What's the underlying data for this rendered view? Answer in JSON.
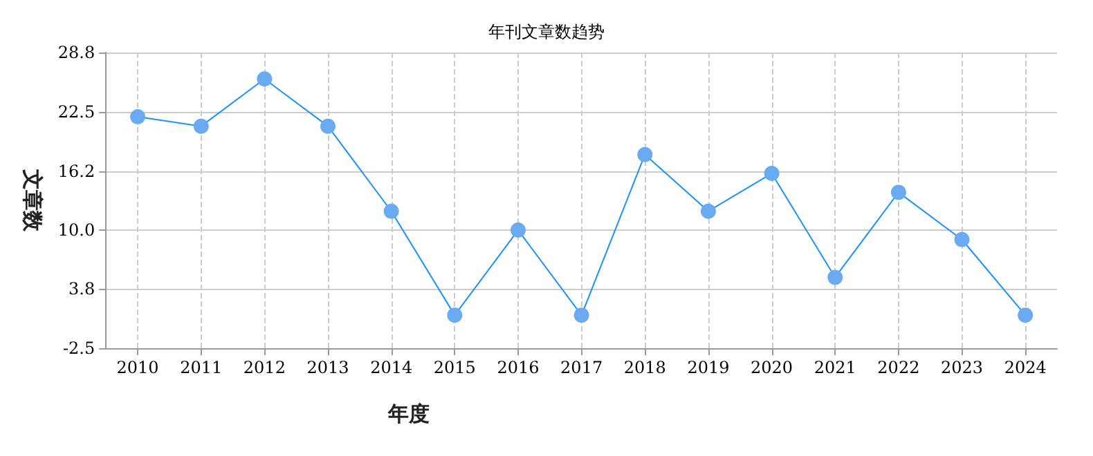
{
  "chart_data": {
    "type": "line",
    "title": "年刊文章数趋势",
    "xlabel": "年度",
    "ylabel": "文章数",
    "categories": [
      "2010",
      "2011",
      "2012",
      "2013",
      "2014",
      "2015",
      "2016",
      "2017",
      "2018",
      "2019",
      "2020",
      "2021",
      "2022",
      "2023",
      "2024"
    ],
    "series": [
      {
        "color": "#1e90ff",
        "values": [
          22,
          21,
          26,
          21,
          12,
          1,
          10,
          1,
          18,
          12,
          16,
          5,
          14,
          9,
          1
        ]
      }
    ],
    "ylim": [
      -2.5,
      28.8
    ],
    "yticks": [
      -2.5,
      3.8,
      {
        "value": 10,
        "label": "10.0"
      },
      16.2,
      22.5,
      28.8
    ],
    "grid": true,
    "marker": "circle",
    "line_style": "solid"
  }
}
